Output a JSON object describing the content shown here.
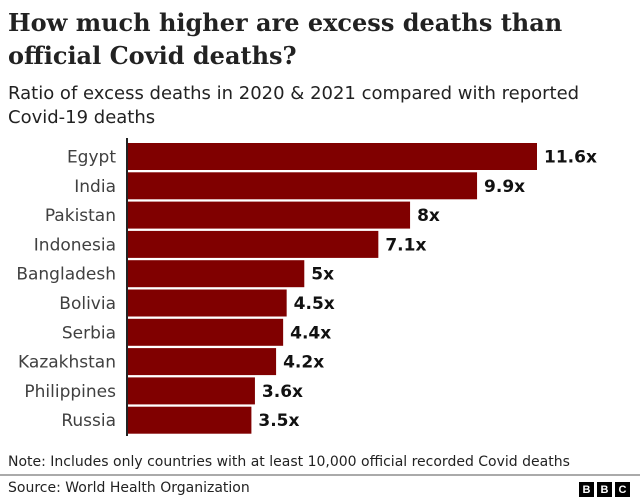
{
  "chart_data": {
    "type": "bar",
    "orientation": "horizontal",
    "title": "How much higher are excess deaths than official Covid deaths?",
    "subtitle": "Ratio of excess deaths in 2020 & 2021 compared with reported Covid-19 deaths",
    "categories": [
      "Egypt",
      "India",
      "Pakistan",
      "Indonesia",
      "Bangladesh",
      "Bolivia",
      "Serbia",
      "Kazakhstan",
      "Philippines",
      "Russia"
    ],
    "values": [
      11.6,
      9.9,
      8,
      7.1,
      5,
      4.5,
      4.4,
      4.2,
      3.6,
      3.5
    ],
    "data_labels": [
      "11.6x",
      "9.9x",
      "8x",
      "7.1x",
      "5x",
      "4.5x",
      "4.4x",
      "4.2x",
      "3.6x",
      "3.5x"
    ],
    "xlim": [
      0,
      11.6
    ],
    "grid": false,
    "bar_color": "#800000"
  },
  "note": "Note: Includes only countries with at least 10,000 official recorded Covid deaths",
  "source": "Source: World Health Organization",
  "logo": [
    "B",
    "B",
    "C"
  ]
}
